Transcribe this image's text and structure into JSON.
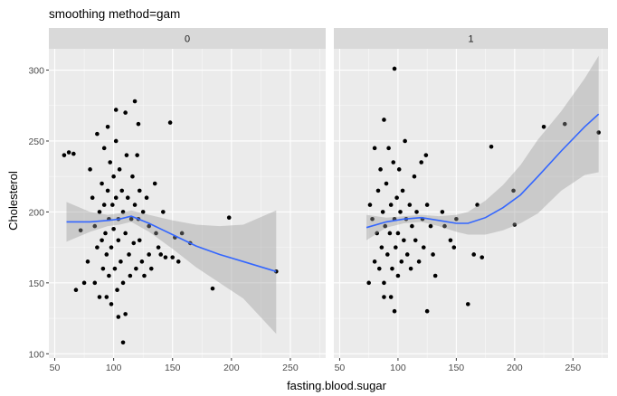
{
  "chart_data": {
    "type": "scatter",
    "title": "smoothing method=gam",
    "xlabel": "fasting.blood.sugar",
    "ylabel": "Cholesterol",
    "xlim": [
      45,
      280
    ],
    "ylim": [
      97,
      315
    ],
    "xticks": [
      50,
      100,
      150,
      200,
      250
    ],
    "yticks": [
      100,
      150,
      200,
      250,
      300
    ],
    "grid": true,
    "colors": {
      "panel_bg": "#ebebeb",
      "strip_bg": "#d9d9d9",
      "grid": "#ffffff",
      "point": "#000000",
      "smooth_line": "#3366ff",
      "ribbon": "#999999"
    },
    "panels": [
      {
        "label": "0",
        "points": [
          [
            58,
            240
          ],
          [
            62,
            242
          ],
          [
            66,
            241
          ],
          [
            68,
            145
          ],
          [
            72,
            187
          ],
          [
            75,
            150
          ],
          [
            78,
            165
          ],
          [
            80,
            230
          ],
          [
            82,
            210
          ],
          [
            84,
            190
          ],
          [
            84,
            150
          ],
          [
            86,
            175
          ],
          [
            86,
            255
          ],
          [
            88,
            200
          ],
          [
            88,
            140
          ],
          [
            90,
            220
          ],
          [
            90,
            180
          ],
          [
            91,
            160
          ],
          [
            92,
            245
          ],
          [
            92,
            205
          ],
          [
            93,
            185
          ],
          [
            94,
            170
          ],
          [
            94,
            140
          ],
          [
            95,
            260
          ],
          [
            95,
            215
          ],
          [
            96,
            195
          ],
          [
            96,
            155
          ],
          [
            97,
            235
          ],
          [
            98,
            175
          ],
          [
            98,
            135
          ],
          [
            99,
            205
          ],
          [
            100,
            225
          ],
          [
            100,
            188
          ],
          [
            101,
            160
          ],
          [
            102,
            250
          ],
          [
            102,
            210
          ],
          [
            103,
            145
          ],
          [
            104,
            195
          ],
          [
            104,
            180
          ],
          [
            105,
            230
          ],
          [
            106,
            165
          ],
          [
            107,
            215
          ],
          [
            108,
            200
          ],
          [
            108,
            150
          ],
          [
            110,
            185
          ],
          [
            110,
            270
          ],
          [
            111,
            240
          ],
          [
            112,
            210
          ],
          [
            113,
            170
          ],
          [
            114,
            155
          ],
          [
            115,
            195
          ],
          [
            116,
            225
          ],
          [
            117,
            178
          ],
          [
            118,
            205
          ],
          [
            119,
            160
          ],
          [
            120,
            240
          ],
          [
            121,
            195
          ],
          [
            122,
            215
          ],
          [
            122,
            180
          ],
          [
            124,
            165
          ],
          [
            125,
            200
          ],
          [
            126,
            155
          ],
          [
            128,
            210
          ],
          [
            130,
            190
          ],
          [
            130,
            170
          ],
          [
            132,
            160
          ],
          [
            135,
            220
          ],
          [
            136,
            185
          ],
          [
            138,
            175
          ],
          [
            140,
            170
          ],
          [
            142,
            200
          ],
          [
            144,
            168
          ],
          [
            148,
            263
          ],
          [
            150,
            168
          ],
          [
            152,
            182
          ],
          [
            155,
            165
          ],
          [
            158,
            185
          ],
          [
            165,
            178
          ],
          [
            184,
            146
          ],
          [
            198,
            196
          ],
          [
            238,
            158
          ],
          [
            104,
            126
          ],
          [
            108,
            108
          ],
          [
            110,
            128
          ],
          [
            118,
            278
          ],
          [
            121,
            262
          ],
          [
            102,
            272
          ]
        ]
      },
      {
        "label": "1",
        "points": [
          [
            75,
            150
          ],
          [
            76,
            205
          ],
          [
            78,
            195
          ],
          [
            80,
            165
          ],
          [
            80,
            245
          ],
          [
            82,
            185
          ],
          [
            83,
            215
          ],
          [
            84,
            160
          ],
          [
            85,
            230
          ],
          [
            86,
            175
          ],
          [
            87,
            200
          ],
          [
            88,
            150
          ],
          [
            88,
            265
          ],
          [
            89,
            190
          ],
          [
            90,
            220
          ],
          [
            91,
            170
          ],
          [
            92,
            245
          ],
          [
            93,
            185
          ],
          [
            94,
            140
          ],
          [
            94,
            205
          ],
          [
            95,
            160
          ],
          [
            96,
            235
          ],
          [
            97,
            195
          ],
          [
            97,
            130
          ],
          [
            98,
            175
          ],
          [
            99,
            210
          ],
          [
            100,
            185
          ],
          [
            100,
            155
          ],
          [
            101,
            230
          ],
          [
            102,
            200
          ],
          [
            103,
            165
          ],
          [
            104,
            215
          ],
          [
            105,
            180
          ],
          [
            106,
            250
          ],
          [
            107,
            195
          ],
          [
            108,
            170
          ],
          [
            110,
            205
          ],
          [
            111,
            160
          ],
          [
            112,
            190
          ],
          [
            114,
            225
          ],
          [
            115,
            180
          ],
          [
            116,
            200
          ],
          [
            118,
            165
          ],
          [
            120,
            235
          ],
          [
            121,
            195
          ],
          [
            122,
            175
          ],
          [
            124,
            240
          ],
          [
            125,
            205
          ],
          [
            128,
            190
          ],
          [
            130,
            170
          ],
          [
            132,
            155
          ],
          [
            138,
            200
          ],
          [
            140,
            190
          ],
          [
            145,
            180
          ],
          [
            148,
            175
          ],
          [
            150,
            195
          ],
          [
            160,
            135
          ],
          [
            165,
            170
          ],
          [
            168,
            205
          ],
          [
            172,
            168
          ],
          [
            180,
            246
          ],
          [
            199,
            215
          ],
          [
            200,
            191
          ],
          [
            225,
            260
          ],
          [
            243,
            262
          ],
          [
            272,
            256
          ],
          [
            97,
            301
          ],
          [
            88,
            140
          ],
          [
            125,
            130
          ]
        ]
      }
    ],
    "smooth": [
      {
        "panel": "0",
        "line": [
          [
            60,
            193
          ],
          [
            80,
            193
          ],
          [
            95,
            194
          ],
          [
            105,
            195
          ],
          [
            115,
            197
          ],
          [
            130,
            192
          ],
          [
            150,
            184
          ],
          [
            170,
            176
          ],
          [
            190,
            170
          ],
          [
            210,
            165
          ],
          [
            238,
            158
          ]
        ],
        "upper": [
          [
            60,
            207
          ],
          [
            80,
            200
          ],
          [
            95,
            198
          ],
          [
            105,
            199
          ],
          [
            115,
            201
          ],
          [
            130,
            198
          ],
          [
            150,
            194
          ],
          [
            170,
            191
          ],
          [
            190,
            190
          ],
          [
            210,
            191
          ],
          [
            238,
            201
          ]
        ],
        "lower": [
          [
            60,
            179
          ],
          [
            80,
            186
          ],
          [
            95,
            190
          ],
          [
            105,
            191
          ],
          [
            115,
            193
          ],
          [
            130,
            186
          ],
          [
            150,
            174
          ],
          [
            170,
            161
          ],
          [
            190,
            150
          ],
          [
            210,
            139
          ],
          [
            238,
            114
          ]
        ]
      },
      {
        "panel": "1",
        "line": [
          [
            73,
            189
          ],
          [
            90,
            193
          ],
          [
            105,
            195
          ],
          [
            120,
            196
          ],
          [
            135,
            194
          ],
          [
            150,
            192
          ],
          [
            160,
            192
          ],
          [
            175,
            196
          ],
          [
            190,
            203
          ],
          [
            205,
            212
          ],
          [
            220,
            225
          ],
          [
            240,
            243
          ],
          [
            260,
            260
          ],
          [
            272,
            269
          ]
        ],
        "upper": [
          [
            73,
            198
          ],
          [
            90,
            196
          ],
          [
            105,
            197
          ],
          [
            120,
            198
          ],
          [
            135,
            197
          ],
          [
            150,
            198
          ],
          [
            160,
            200
          ],
          [
            175,
            208
          ],
          [
            190,
            219
          ],
          [
            205,
            233
          ],
          [
            220,
            251
          ],
          [
            240,
            271
          ],
          [
            260,
            294
          ],
          [
            272,
            310
          ]
        ],
        "lower": [
          [
            73,
            180
          ],
          [
            90,
            189
          ],
          [
            105,
            192
          ],
          [
            120,
            193
          ],
          [
            135,
            190
          ],
          [
            150,
            186
          ],
          [
            160,
            184
          ],
          [
            175,
            184
          ],
          [
            190,
            187
          ],
          [
            205,
            192
          ],
          [
            220,
            199
          ],
          [
            240,
            215
          ],
          [
            260,
            226
          ],
          [
            272,
            228
          ]
        ]
      }
    ]
  }
}
